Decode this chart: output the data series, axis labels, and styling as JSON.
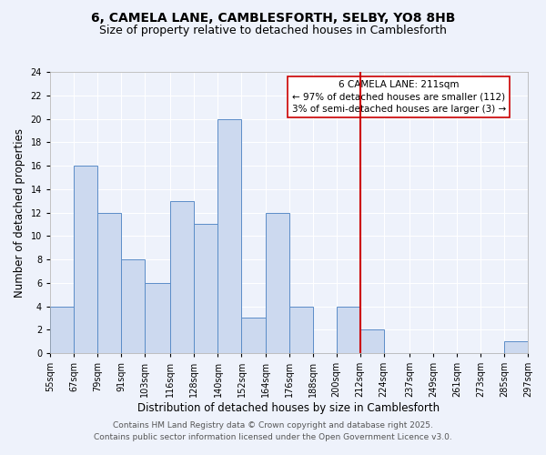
{
  "title": "6, CAMELA LANE, CAMBLESFORTH, SELBY, YO8 8HB",
  "subtitle": "Size of property relative to detached houses in Camblesforth",
  "xlabel": "Distribution of detached houses by size in Camblesforth",
  "ylabel": "Number of detached properties",
  "bin_edges": [
    55,
    67,
    79,
    91,
    103,
    116,
    128,
    140,
    152,
    164,
    176,
    188,
    200,
    212,
    224,
    237,
    249,
    261,
    273,
    285,
    297
  ],
  "bin_counts": [
    4,
    16,
    12,
    8,
    6,
    13,
    11,
    20,
    3,
    12,
    4,
    0,
    4,
    2,
    0,
    0,
    0,
    0,
    0,
    1
  ],
  "tick_labels": [
    "55sqm",
    "67sqm",
    "79sqm",
    "91sqm",
    "103sqm",
    "116sqm",
    "128sqm",
    "140sqm",
    "152sqm",
    "164sqm",
    "176sqm",
    "188sqm",
    "200sqm",
    "212sqm",
    "224sqm",
    "237sqm",
    "249sqm",
    "261sqm",
    "273sqm",
    "285sqm",
    "297sqm"
  ],
  "bar_color": "#ccd9ef",
  "bar_edge_color": "#5b8dc8",
  "background_color": "#eef2fb",
  "grid_color": "#ffffff",
  "vline_x": 212,
  "vline_color": "#cc0000",
  "annotation_line1": "6 CAMELA LANE: 211sqm",
  "annotation_line2": "← 97% of detached houses are smaller (112)",
  "annotation_line3": "3% of semi-detached houses are larger (3) →",
  "annotation_box_color": "#ffffff",
  "annotation_box_edge": "#cc0000",
  "ylim": [
    0,
    24
  ],
  "yticks": [
    0,
    2,
    4,
    6,
    8,
    10,
    12,
    14,
    16,
    18,
    20,
    22,
    24
  ],
  "footer1": "Contains HM Land Registry data © Crown copyright and database right 2025.",
  "footer2": "Contains public sector information licensed under the Open Government Licence v3.0.",
  "title_fontsize": 10,
  "subtitle_fontsize": 9,
  "axis_label_fontsize": 8.5,
  "tick_fontsize": 7,
  "annotation_fontsize": 7.5,
  "footer_fontsize": 6.5
}
